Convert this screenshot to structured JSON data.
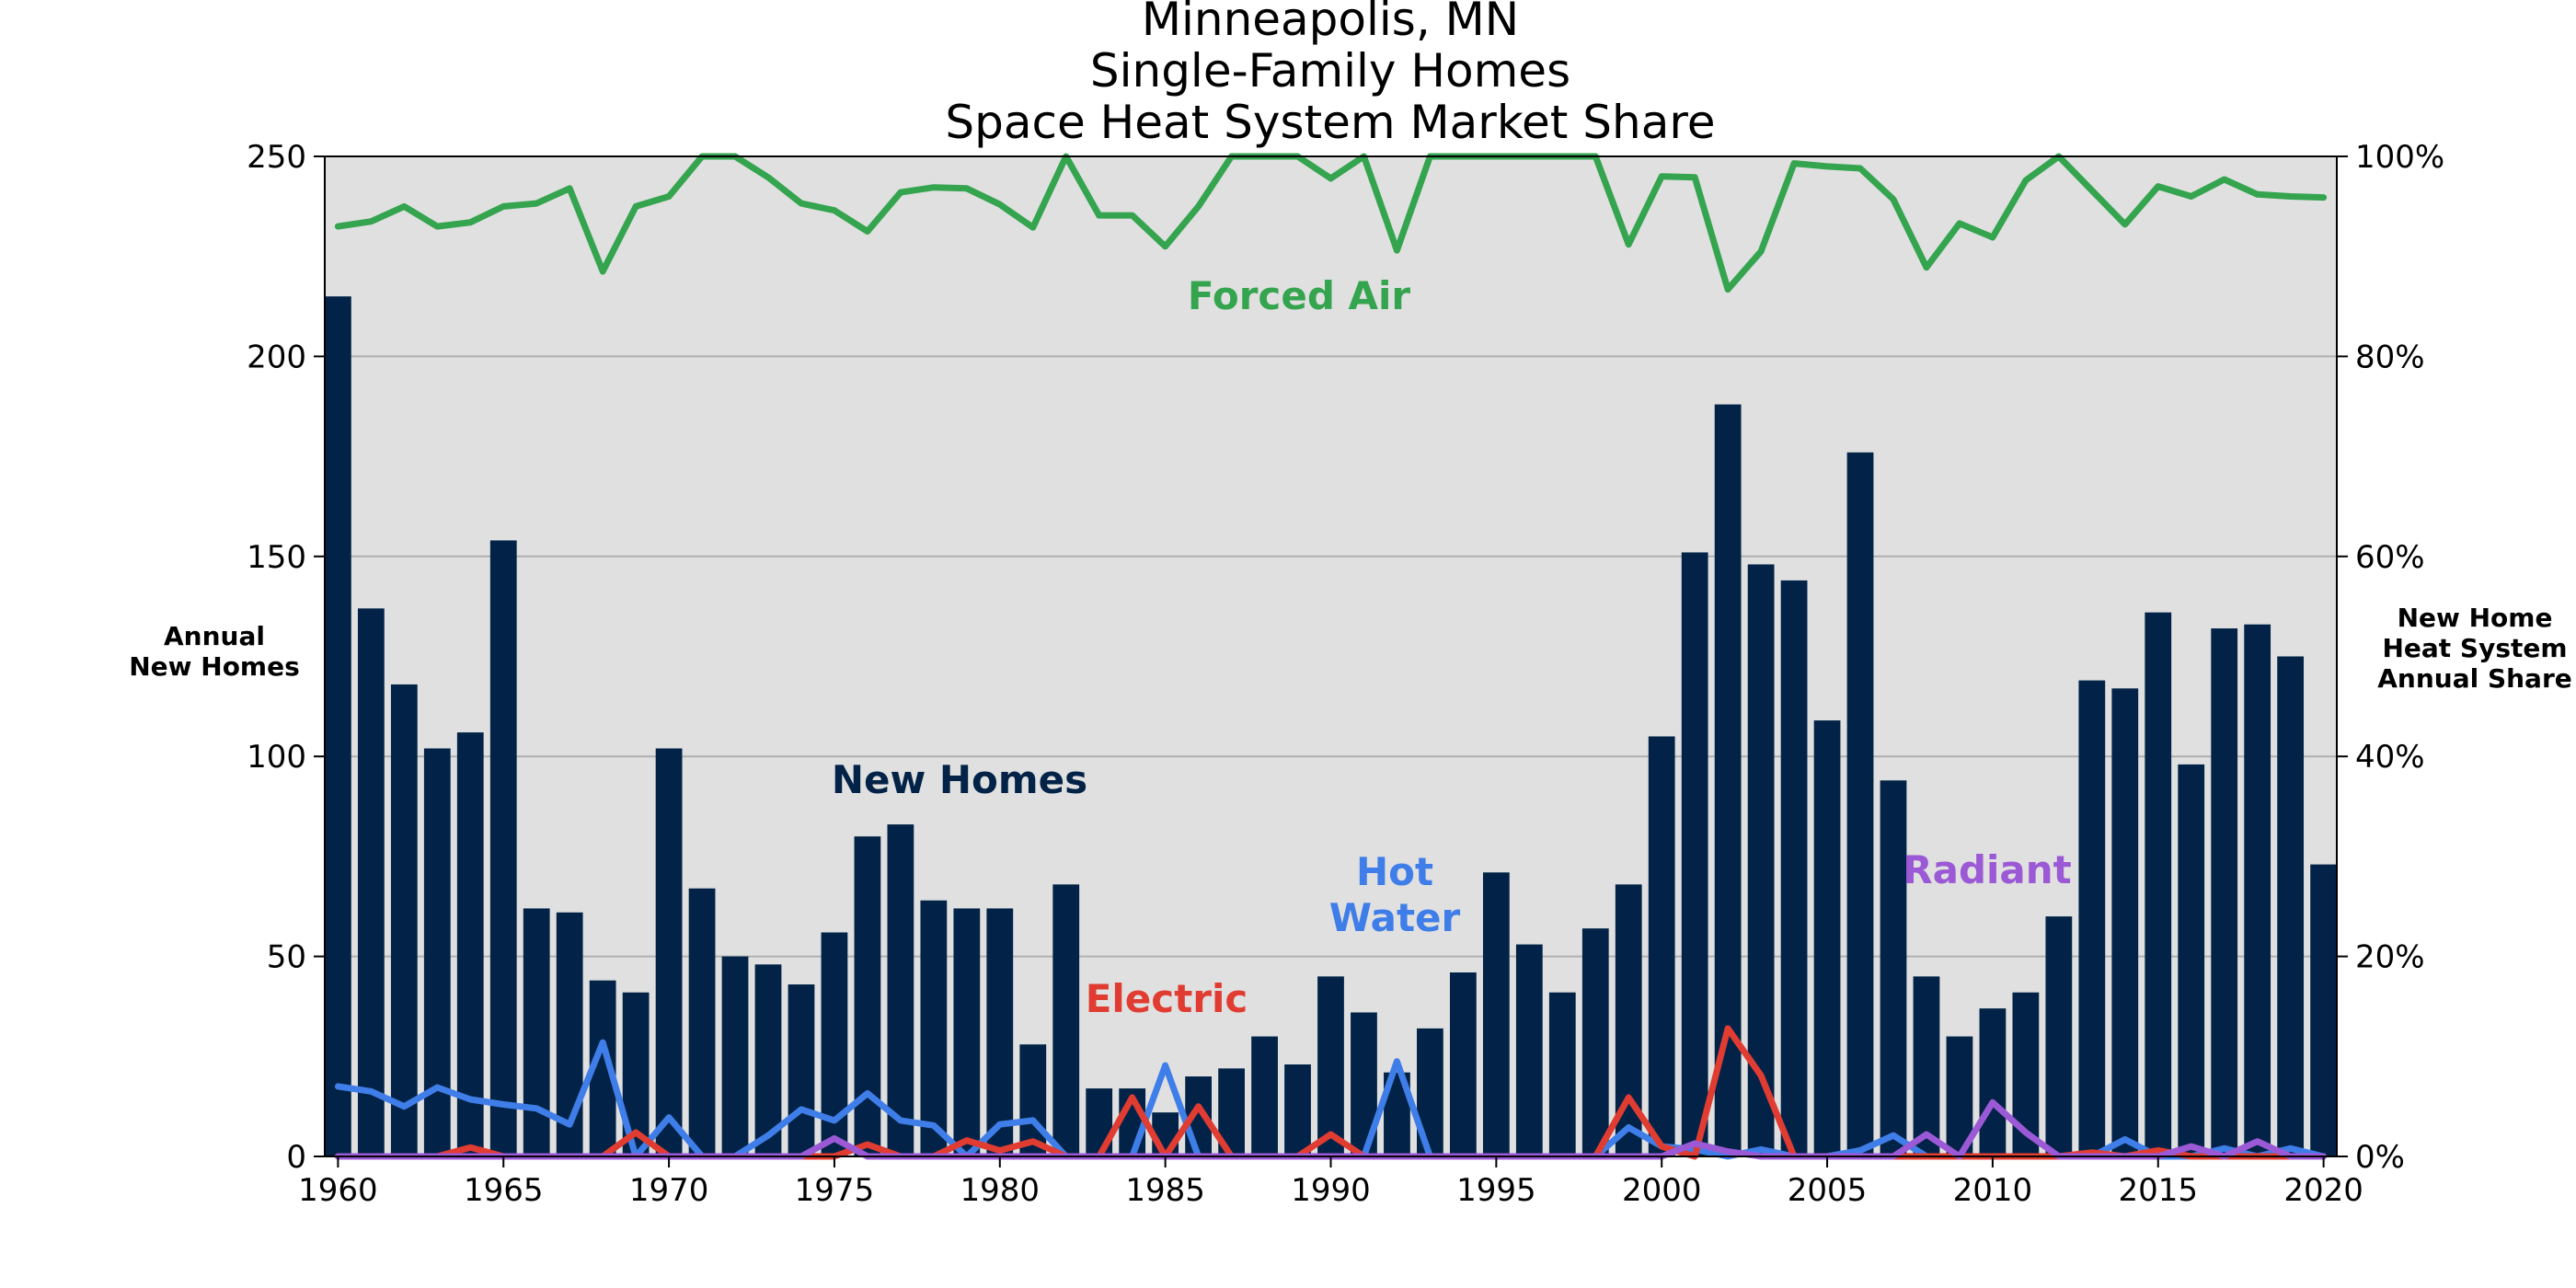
{
  "chart_data": {
    "type": "bar",
    "title": [
      "Minneapolis, MN",
      "Single-Family Homes",
      "Space Heat System Market Share"
    ],
    "ylabel_left": [
      "Annual",
      "New Homes"
    ],
    "ylabel_right": [
      "New Home",
      "Heat System",
      "Annual Share"
    ],
    "ylim_left": [
      0,
      250
    ],
    "ylim_right": [
      0,
      100
    ],
    "xlim": [
      1959.6,
      2020.4
    ],
    "grid": "horizontal",
    "x_ticks": [
      1960,
      1965,
      1970,
      1975,
      1980,
      1985,
      1990,
      1995,
      2000,
      2005,
      2010,
      2015,
      2020
    ],
    "y_ticks_left": [
      0,
      50,
      100,
      150,
      200,
      250
    ],
    "y_ticks_right": [
      "0%",
      "20%",
      "40%",
      "60%",
      "80%",
      "100%"
    ],
    "years": [
      1960,
      1961,
      1962,
      1963,
      1964,
      1965,
      1966,
      1967,
      1968,
      1969,
      1970,
      1971,
      1972,
      1973,
      1974,
      1975,
      1976,
      1977,
      1978,
      1979,
      1980,
      1981,
      1982,
      1983,
      1984,
      1985,
      1986,
      1987,
      1988,
      1989,
      1990,
      1991,
      1992,
      1993,
      1994,
      1995,
      1996,
      1997,
      1998,
      1999,
      2000,
      2001,
      2002,
      2003,
      2004,
      2005,
      2006,
      2007,
      2008,
      2009,
      2010,
      2011,
      2012,
      2013,
      2014,
      2015,
      2016,
      2017,
      2018,
      2019,
      2020
    ],
    "bars": {
      "name": "New Homes",
      "color": "#022347",
      "values": [
        215,
        137,
        118,
        102,
        106,
        154,
        62,
        61,
        44,
        41,
        102,
        67,
        50,
        48,
        43,
        56,
        80,
        83,
        64,
        62,
        62,
        28,
        68,
        17,
        17,
        11,
        20,
        22,
        30,
        23,
        45,
        36,
        21,
        32,
        46,
        71,
        53,
        41,
        57,
        68,
        105,
        151,
        188,
        148,
        144,
        109,
        176,
        94,
        45,
        30,
        37,
        41,
        60,
        119,
        117,
        136,
        98,
        132,
        133,
        125,
        73
      ]
    },
    "series": [
      {
        "name": "Forced Air",
        "color": "#34a44f",
        "axis": "right",
        "values": [
          93,
          93.5,
          95,
          93,
          93.4,
          95,
          95.3,
          96.8,
          88.5,
          95,
          96,
          100,
          100,
          97.9,
          95.3,
          94.6,
          92.5,
          96.4,
          96.9,
          96.8,
          95.2,
          92.9,
          100,
          94.1,
          94.1,
          91,
          95,
          100,
          100,
          100,
          97.8,
          100,
          90.6,
          100,
          100,
          100,
          100,
          100,
          100,
          91.2,
          98,
          97.9,
          86.7,
          90.5,
          99.3,
          99,
          98.8,
          95.7,
          88.9,
          93.3,
          91.9,
          97.6,
          100,
          96.6,
          93.2,
          97,
          96,
          97.7,
          96.2,
          96,
          95.9
        ]
      },
      {
        "name": "Hot Water",
        "color": "#3f7ee8",
        "axis": "right",
        "values": [
          7,
          6.5,
          5,
          6.9,
          5.7,
          5.2,
          4.8,
          3.2,
          11.4,
          0,
          3.9,
          0,
          0,
          2.1,
          4.7,
          3.6,
          6.3,
          3.6,
          3.1,
          0,
          3.2,
          3.6,
          0,
          0,
          0,
          9.1,
          0,
          0,
          0,
          0,
          0,
          0,
          9.5,
          0,
          0,
          0,
          0,
          0,
          0,
          2.9,
          1,
          0.7,
          0,
          0.7,
          0,
          0,
          0.6,
          2.1,
          0,
          0,
          0,
          0,
          0,
          0,
          1.7,
          0,
          0,
          0.8,
          0,
          0.8,
          0
        ]
      },
      {
        "name": "Electric",
        "color": "#e03c31",
        "axis": "right",
        "values": [
          0,
          0,
          0,
          0,
          0.9,
          0,
          0,
          0,
          0,
          2.4,
          0,
          0,
          0,
          0,
          0,
          0,
          1.2,
          0,
          0,
          1.6,
          0.6,
          1.5,
          0,
          0,
          5.9,
          0,
          5,
          0,
          0,
          0,
          2.2,
          0,
          0,
          0,
          0,
          0,
          0,
          0,
          0,
          5.9,
          1,
          0,
          12.8,
          8.1,
          0,
          0,
          0,
          0,
          0,
          0,
          0,
          0,
          0,
          0.4,
          0,
          0.6,
          0,
          0,
          0,
          0,
          0
        ]
      },
      {
        "name": "Radiant",
        "color": "#9b59d6",
        "axis": "right",
        "values": [
          0,
          0,
          0,
          0,
          0,
          0,
          0,
          0,
          0,
          0,
          0,
          0,
          0,
          0,
          0,
          1.8,
          0,
          0,
          0,
          0,
          0,
          0,
          0,
          0,
          0,
          0,
          0,
          0,
          0,
          0,
          0,
          0,
          0,
          0,
          0,
          0,
          0,
          0,
          0,
          0,
          0,
          1.3,
          0.5,
          0,
          0,
          0,
          0,
          0,
          2.2,
          0,
          5.4,
          2.4,
          0,
          0,
          0,
          0,
          1,
          0,
          1.5,
          0,
          0
        ]
      }
    ]
  },
  "annotations": {
    "forced_air": "Forced Air",
    "new_homes": "New Homes",
    "hot_water": [
      "Hot",
      "Water"
    ],
    "electric": "Electric",
    "radiant": "Radiant"
  }
}
